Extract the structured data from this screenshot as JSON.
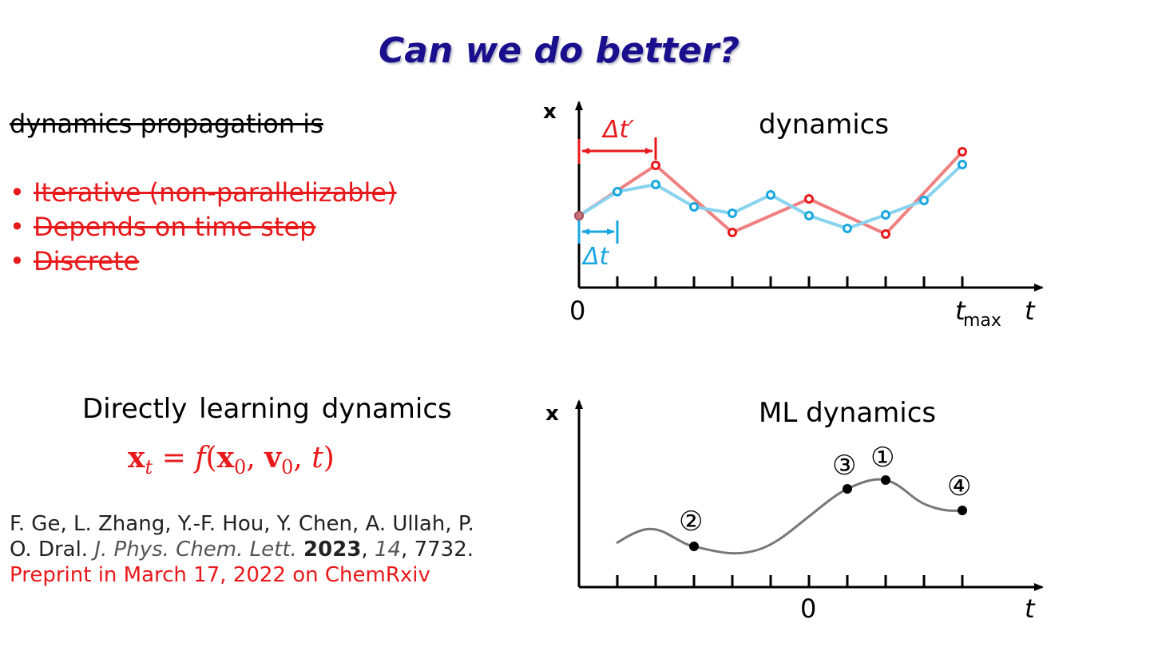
{
  "title": "Can we do better?",
  "left": {
    "intro": "dynamics propagation is",
    "bullets": [
      "Iterative (non-parallelizable)",
      "Depends on time step",
      "Discrete"
    ],
    "bullet_symbol": "•",
    "direct_heading": "Directly learning dynamics",
    "formula": {
      "x": "x",
      "t_sub": "t",
      "eq": " = ",
      "f": "f",
      "open": "(",
      "x0": "x",
      "zero1": "0",
      "comma1": ", ",
      "v0": "v",
      "zero2": "0",
      "comma2": ", ",
      "t": "t",
      "close": ")"
    },
    "reference": {
      "authors_line1": "F. Ge, L. Zhang, Y.-F. Hou, Y. Chen, A. Ullah, P.",
      "authors_line2": "O. Dral. ",
      "journal": "J. Phys. Chem. Lett.",
      "year": "2023",
      "volume": "14",
      "pages": "7732.",
      "preprint": "Preprint in March 17, 2022 on ChemRxiv"
    }
  },
  "top_plot": {
    "title": "dynamics",
    "y_label": "x",
    "x_label": "t",
    "zero_label": "0",
    "tmax_label": "t",
    "tmax_sub": "max",
    "dt_prime_label": "Δt′",
    "dt_label": "Δt",
    "colors": {
      "red": "#e8191b",
      "blue": "#1aa7e0",
      "red_line": "#f08080",
      "blue_line": "#87d3f0"
    }
  },
  "bottom_plot": {
    "title": "ML dynamics",
    "y_label": "x",
    "x_label": "t",
    "zero_label": "0",
    "markers": [
      "①",
      "②",
      "③",
      "④"
    ]
  }
}
